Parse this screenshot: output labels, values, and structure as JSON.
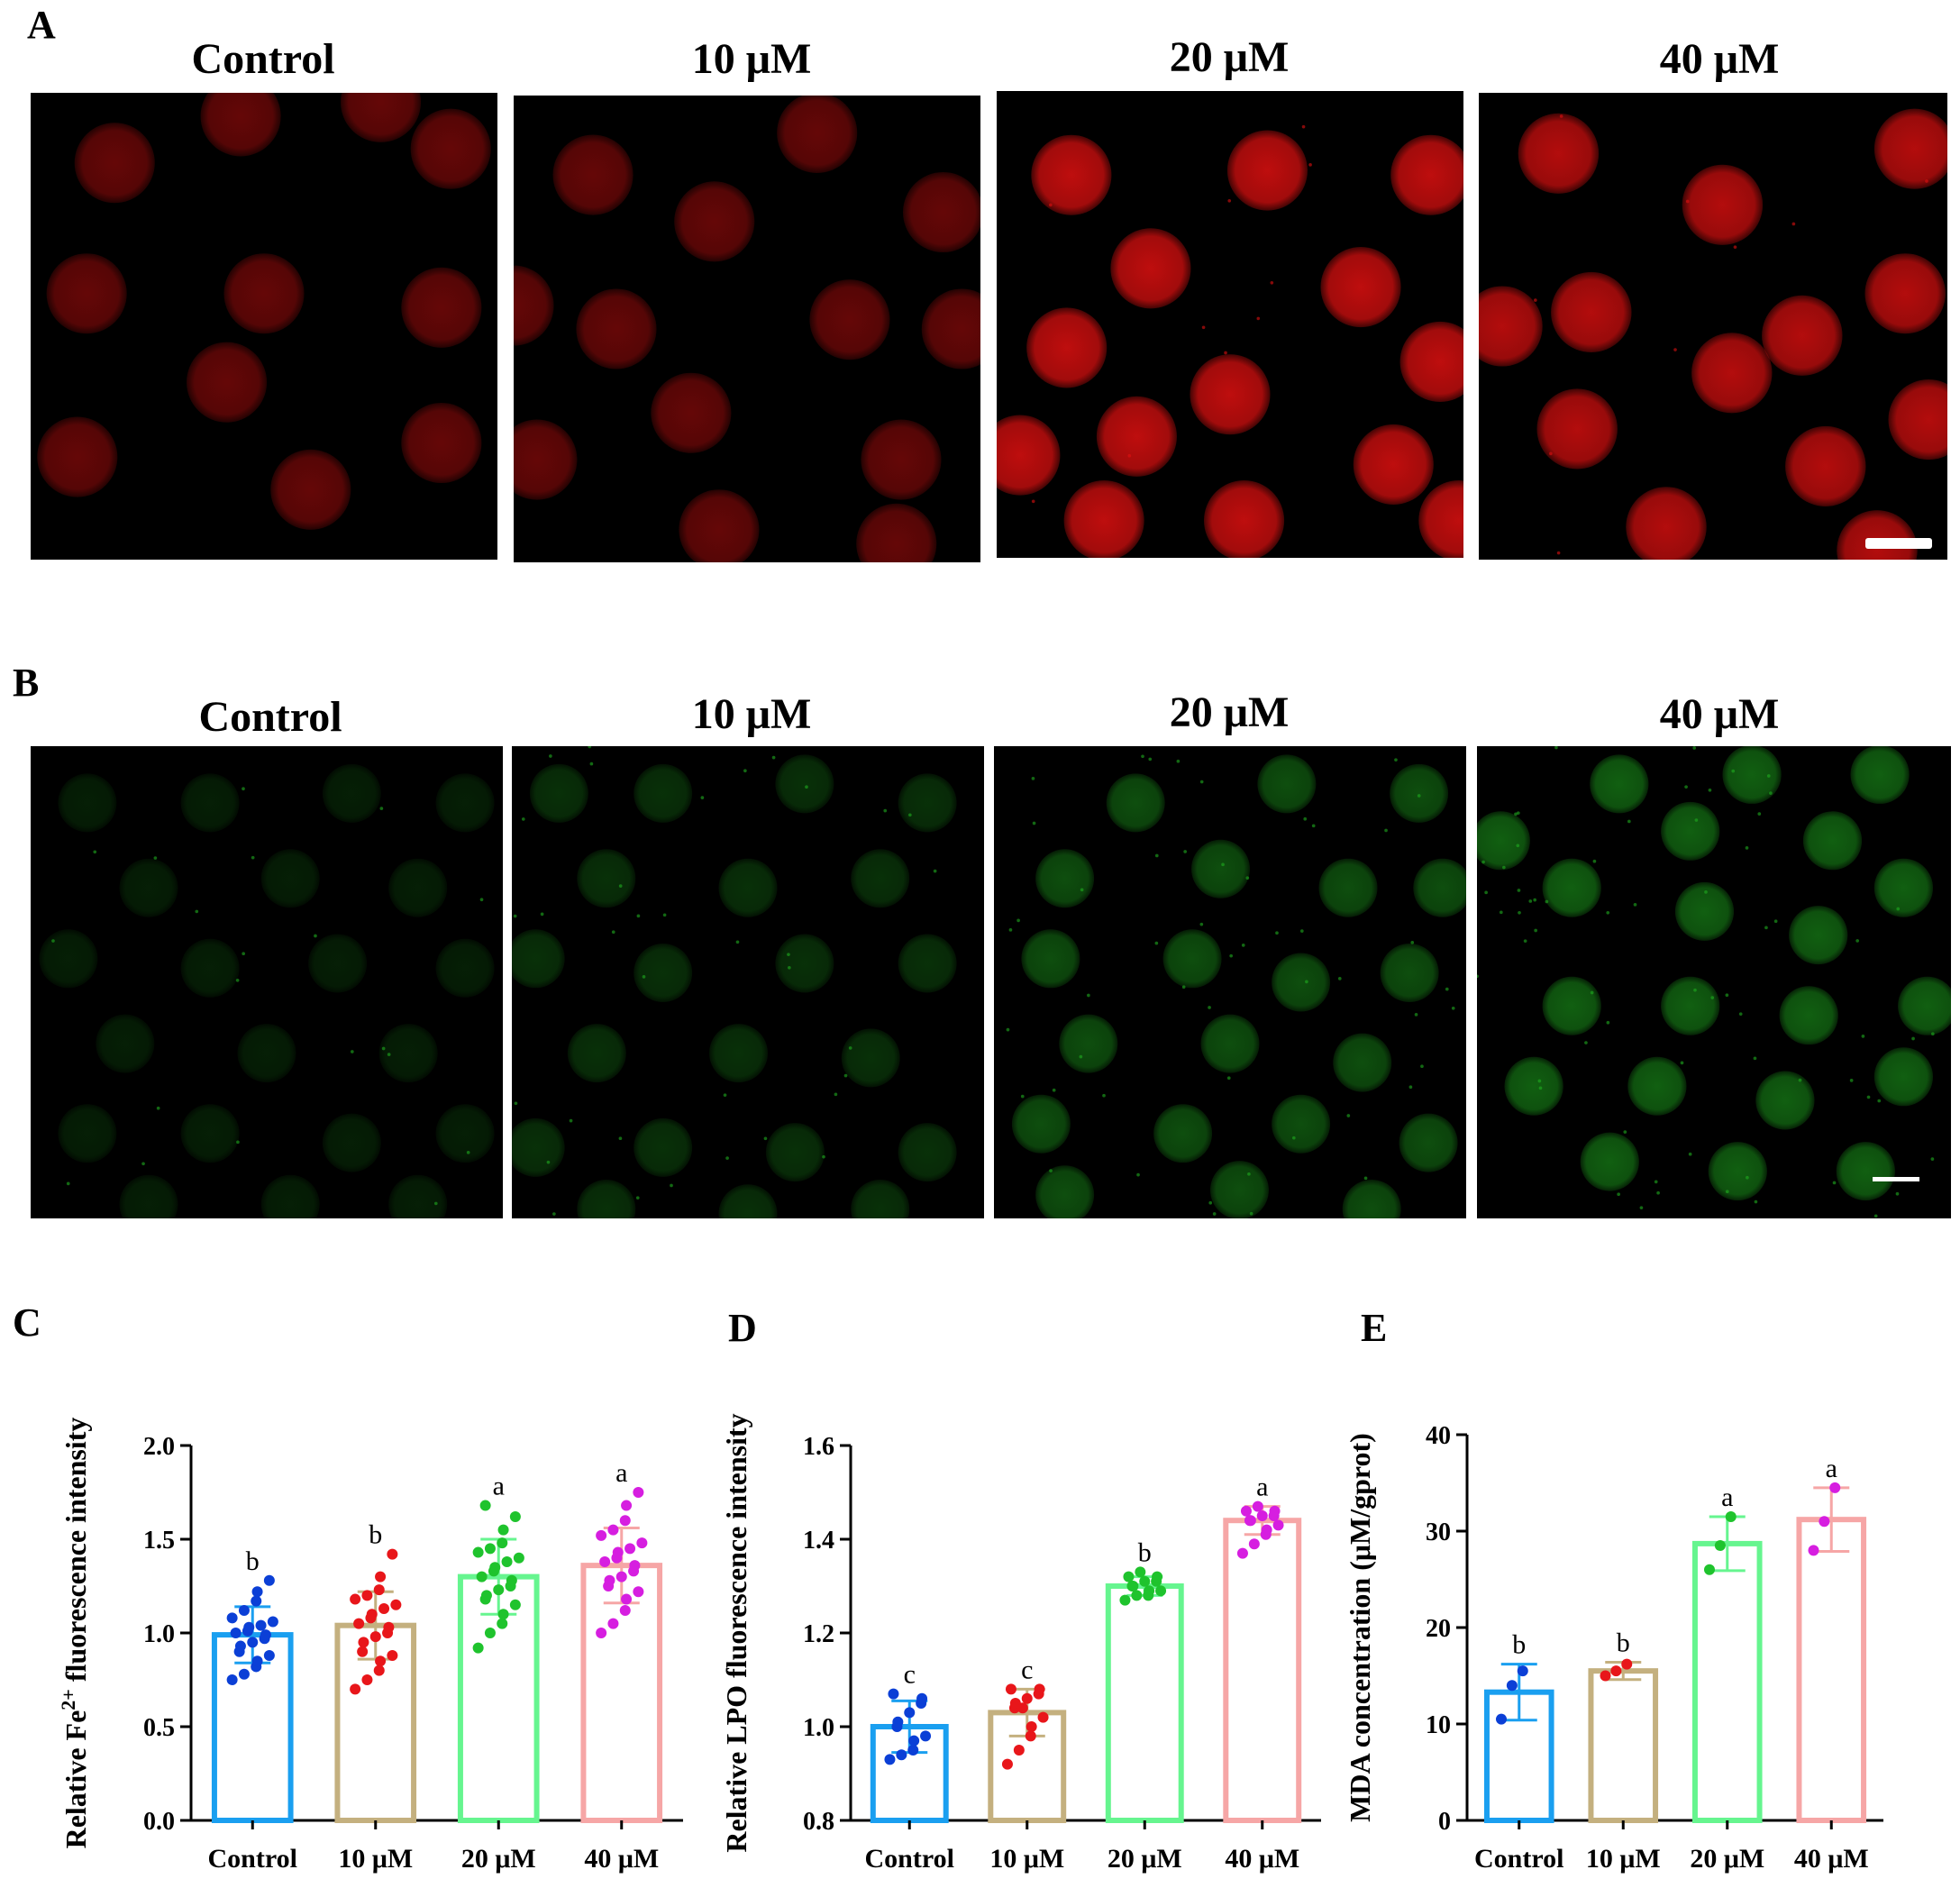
{
  "panel_A": {
    "letter": "A",
    "titles": [
      "Control",
      "10 μM",
      "20 μM",
      "40 μM"
    ],
    "stain_color": "#e01010",
    "intensity": [
      0.45,
      0.45,
      0.85,
      0.8
    ]
  },
  "panel_B": {
    "letter": "B",
    "titles": [
      "Control",
      "10 μM",
      "20 μM",
      "40 μM"
    ],
    "stain_color": "#1fae1f",
    "intensity": [
      0.18,
      0.28,
      0.45,
      0.55
    ]
  },
  "chart_data": [
    {
      "panel": "C",
      "type": "bar",
      "categories": [
        "Control",
        "10 μM",
        "20 μM",
        "40 μM"
      ],
      "values": [
        0.99,
        1.04,
        1.3,
        1.36
      ],
      "errors": [
        0.15,
        0.18,
        0.2,
        0.2
      ],
      "letters": [
        "b",
        "b",
        "a",
        "a"
      ],
      "points": [
        [
          0.75,
          0.78,
          0.82,
          0.85,
          0.88,
          0.9,
          0.93,
          0.95,
          0.97,
          0.99,
          1.0,
          1.01,
          1.03,
          1.04,
          1.06,
          1.08,
          1.12,
          1.17,
          1.22,
          1.28
        ],
        [
          0.7,
          0.75,
          0.8,
          0.85,
          0.88,
          0.9,
          0.95,
          0.98,
          1.0,
          1.03,
          1.05,
          1.08,
          1.1,
          1.13,
          1.15,
          1.18,
          1.2,
          1.23,
          1.3,
          1.42
        ],
        [
          0.92,
          1.0,
          1.05,
          1.1,
          1.15,
          1.18,
          1.2,
          1.23,
          1.25,
          1.28,
          1.3,
          1.33,
          1.35,
          1.38,
          1.4,
          1.43,
          1.45,
          1.48,
          1.55,
          1.62,
          1.68
        ],
        [
          1.0,
          1.05,
          1.12,
          1.18,
          1.22,
          1.25,
          1.28,
          1.3,
          1.33,
          1.36,
          1.38,
          1.4,
          1.43,
          1.45,
          1.48,
          1.52,
          1.55,
          1.6,
          1.68,
          1.75
        ]
      ],
      "ylabel_parts": [
        "Relative Fe",
        "2+",
        " fluorescence intensity"
      ],
      "ylim": [
        0,
        2.0
      ],
      "yticks": [
        0.0,
        0.5,
        1.0,
        1.5,
        2.0
      ],
      "ytick_labels": [
        "0.0",
        "0.5",
        "1.0",
        "1.5",
        "2.0"
      ]
    },
    {
      "panel": "D",
      "type": "bar",
      "categories": [
        "Control",
        "10 μM",
        "20 μM",
        "40 μM"
      ],
      "values": [
        1.0,
        1.03,
        1.3,
        1.44
      ],
      "errors": [
        0.055,
        0.05,
        0.02,
        0.03
      ],
      "letters": [
        "c",
        "c",
        "b",
        "a"
      ],
      "points": [
        [
          0.93,
          0.94,
          0.95,
          0.97,
          0.98,
          1.0,
          1.01,
          1.03,
          1.05,
          1.06,
          1.07
        ],
        [
          0.92,
          0.95,
          0.98,
          1.0,
          1.02,
          1.04,
          1.05,
          1.06,
          1.07,
          1.08,
          1.08,
          1.04
        ],
        [
          1.27,
          1.28,
          1.28,
          1.29,
          1.29,
          1.3,
          1.3,
          1.31,
          1.31,
          1.32,
          1.32,
          1.33
        ],
        [
          1.37,
          1.39,
          1.41,
          1.42,
          1.43,
          1.44,
          1.44,
          1.45,
          1.45,
          1.46,
          1.46,
          1.47
        ]
      ],
      "ylabel": "Relative LPO fluorescence intensity",
      "ylim": [
        0.8,
        1.6
      ],
      "yticks": [
        0.8,
        1.0,
        1.2,
        1.4,
        1.6
      ],
      "ytick_labels": [
        "0.8",
        "1.0",
        "1.2",
        "1.4",
        "1.6"
      ]
    },
    {
      "panel": "E",
      "type": "bar",
      "categories": [
        "Control",
        "10 μM",
        "20 μM",
        "40 μM"
      ],
      "values": [
        13.3,
        15.5,
        28.7,
        31.2
      ],
      "errors": [
        2.9,
        0.9,
        2.8,
        3.3
      ],
      "letters": [
        "b",
        "b",
        "a",
        "a"
      ],
      "points": [
        [
          10.5,
          14.0,
          15.5
        ],
        [
          15.0,
          15.5,
          16.2
        ],
        [
          26.0,
          28.5,
          31.5
        ],
        [
          28.0,
          31.0,
          34.5
        ]
      ],
      "ylabel": "MDA concentration (μM/gprot)",
      "ylim": [
        0,
        40
      ],
      "yticks": [
        0,
        10,
        20,
        30,
        40
      ],
      "ytick_labels": [
        "0",
        "10",
        "20",
        "30",
        "40"
      ]
    }
  ],
  "colors": {
    "bars": [
      "#1a9ff0",
      "#c4b07f",
      "#66f58f",
      "#f6a6a6"
    ],
    "points": [
      "#0b3fd6",
      "#e8161a",
      "#1fc32d",
      "#d61ee0"
    ],
    "errors": [
      "#1a9ff0",
      "#c4b07f",
      "#66f58f",
      "#f6a6a6"
    ]
  }
}
